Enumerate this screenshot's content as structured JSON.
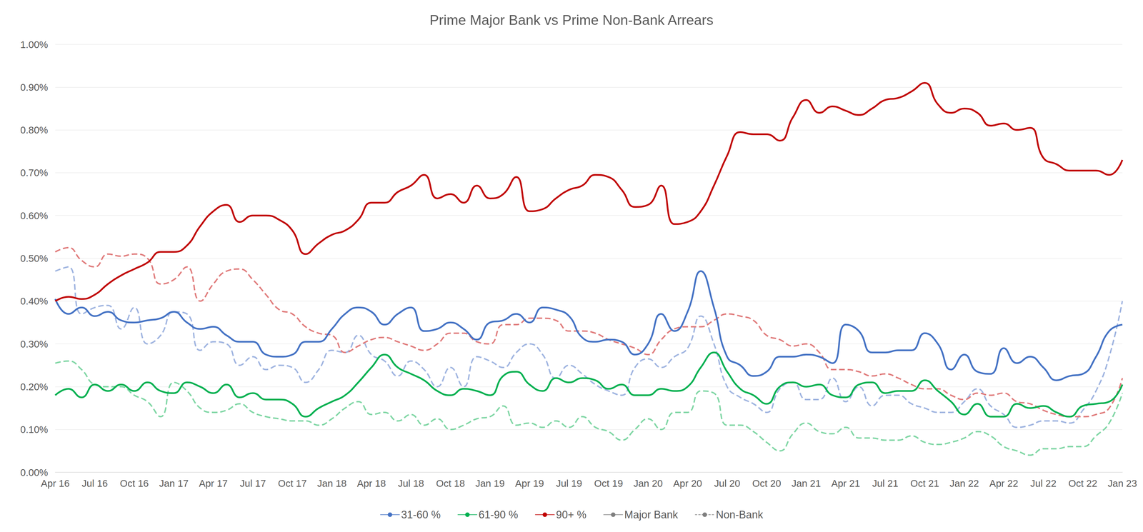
{
  "chart_data": {
    "type": "line",
    "title": "Prime Major Bank vs Prime Non-Bank Arrears",
    "categories": [
      "Apr 16",
      null,
      null,
      "Jul 16",
      null,
      null,
      "Oct 16",
      null,
      null,
      "Jan 17",
      null,
      null,
      "Apr 17",
      null,
      null,
      "Jul 17",
      null,
      null,
      "Oct 17",
      null,
      null,
      "Jan 18",
      null,
      null,
      "Apr 18",
      null,
      null,
      "Jul 18",
      null,
      null,
      "Oct 18",
      null,
      null,
      "Jan 19",
      null,
      null,
      "Apr 19",
      null,
      null,
      "Jul 19",
      null,
      null,
      "Oct 19",
      null,
      null,
      "Jan 20",
      null,
      null,
      "Apr 20",
      null,
      null,
      "Jul 20",
      null,
      null,
      "Oct 20",
      null,
      null,
      "Jan 21",
      null,
      null,
      "Apr 21",
      null,
      null,
      "Jul 21",
      null,
      null,
      "Oct 21",
      null,
      null,
      "Jan 22",
      null,
      null,
      "Apr 22",
      null,
      null,
      "Jul 22",
      null,
      null,
      "Oct 22",
      null,
      null,
      "Jan 23"
    ],
    "series": [
      {
        "name": "31-60 %",
        "lender": "Major Bank",
        "color": "#4472c4",
        "line_style": "solid",
        "values": [
          0.405,
          0.37,
          0.385,
          0.365,
          0.375,
          0.355,
          0.35,
          0.355,
          0.36,
          0.375,
          0.35,
          0.335,
          0.34,
          0.32,
          0.305,
          0.305,
          0.275,
          0.27,
          0.275,
          0.305,
          0.305,
          0.335,
          0.37,
          0.385,
          0.375,
          0.345,
          0.37,
          0.385,
          0.33,
          0.335,
          0.35,
          0.335,
          0.31,
          0.35,
          0.355,
          0.37,
          0.35,
          0.385,
          0.38,
          0.365,
          0.315,
          0.305,
          0.31,
          0.305,
          0.275,
          0.3,
          0.37,
          0.33,
          0.375,
          0.47,
          0.385,
          0.27,
          0.25,
          0.225,
          0.235,
          0.27,
          0.27,
          0.275,
          0.27,
          0.255,
          0.345,
          0.33,
          0.28,
          0.28,
          0.285,
          0.285,
          0.325,
          0.3,
          0.24,
          0.275,
          0.235,
          0.23,
          0.29,
          0.255,
          0.27,
          0.245,
          0.215,
          0.225,
          0.23,
          0.27,
          0.33,
          0.345
        ]
      },
      {
        "name": "61-90 %",
        "lender": "Major Bank",
        "color": "#00b050",
        "line_style": "solid",
        "values": [
          0.18,
          0.195,
          0.175,
          0.205,
          0.19,
          0.205,
          0.19,
          0.21,
          0.19,
          0.185,
          0.21,
          0.2,
          0.185,
          0.205,
          0.175,
          0.185,
          0.17,
          0.17,
          0.16,
          0.13,
          0.15,
          0.165,
          0.18,
          0.21,
          0.245,
          0.275,
          0.245,
          0.23,
          0.215,
          0.19,
          0.18,
          0.195,
          0.19,
          0.18,
          0.225,
          0.235,
          0.205,
          0.19,
          0.22,
          0.21,
          0.22,
          0.215,
          0.195,
          0.205,
          0.18,
          0.18,
          0.195,
          0.19,
          0.2,
          0.245,
          0.28,
          0.235,
          0.195,
          0.18,
          0.16,
          0.2,
          0.21,
          0.2,
          0.205,
          0.18,
          0.175,
          0.205,
          0.21,
          0.185,
          0.19,
          0.19,
          0.215,
          0.19,
          0.165,
          0.135,
          0.16,
          0.13,
          0.13,
          0.16,
          0.15,
          0.155,
          0.14,
          0.13,
          0.155,
          0.16,
          0.165,
          0.205
        ]
      },
      {
        "name": "90+ %",
        "lender": "Major Bank",
        "color": "#c00000",
        "line_style": "solid",
        "values": [
          0.4,
          0.41,
          0.405,
          0.415,
          0.44,
          0.46,
          0.475,
          0.49,
          0.515,
          0.515,
          0.53,
          0.575,
          0.61,
          0.625,
          0.585,
          0.6,
          0.6,
          0.59,
          0.565,
          0.51,
          0.535,
          0.555,
          0.565,
          0.59,
          0.63,
          0.63,
          0.655,
          0.67,
          0.695,
          0.64,
          0.65,
          0.63,
          0.67,
          0.64,
          0.65,
          0.69,
          0.61,
          0.615,
          0.64,
          0.66,
          0.67,
          0.695,
          0.69,
          0.66,
          0.62,
          0.625,
          0.67,
          0.58,
          0.585,
          0.61,
          0.67,
          0.74,
          0.795,
          0.79,
          0.79,
          0.775,
          0.83,
          0.87,
          0.84,
          0.855,
          0.845,
          0.835,
          0.85,
          0.87,
          0.875,
          0.89,
          0.91,
          0.86,
          0.84,
          0.85,
          0.84,
          0.81,
          0.815,
          0.8,
          0.805,
          0.735,
          0.72,
          0.705,
          0.705,
          0.705,
          0.695,
          0.73
        ]
      },
      {
        "name": "31-60 %",
        "lender": "Non-Bank",
        "color": "#9fb4e0",
        "line_style": "dashed",
        "values": [
          0.47,
          0.48,
          0.37,
          0.385,
          0.39,
          0.335,
          0.385,
          0.3,
          0.32,
          0.375,
          0.37,
          0.285,
          0.305,
          0.3,
          0.25,
          0.27,
          0.24,
          0.25,
          0.245,
          0.21,
          0.24,
          0.285,
          0.28,
          0.32,
          0.275,
          0.26,
          0.225,
          0.26,
          0.24,
          0.2,
          0.245,
          0.2,
          0.27,
          0.26,
          0.245,
          0.28,
          0.3,
          0.275,
          0.22,
          0.25,
          0.23,
          0.205,
          0.19,
          0.18,
          0.245,
          0.265,
          0.245,
          0.27,
          0.29,
          0.365,
          0.3,
          0.2,
          0.175,
          0.16,
          0.14,
          0.195,
          0.21,
          0.17,
          0.17,
          0.22,
          0.165,
          0.2,
          0.155,
          0.18,
          0.18,
          0.16,
          0.15,
          0.14,
          0.14,
          0.165,
          0.195,
          0.155,
          0.135,
          0.105,
          0.11,
          0.12,
          0.12,
          0.115,
          0.145,
          0.19,
          0.27,
          0.4
        ]
      },
      {
        "name": "61-90 %",
        "lender": "Non-Bank",
        "color": "#7fd6a4",
        "line_style": "dashed",
        "values": [
          0.255,
          0.26,
          0.24,
          0.205,
          0.2,
          0.2,
          0.18,
          0.165,
          0.13,
          0.21,
          0.19,
          0.15,
          0.14,
          0.145,
          0.16,
          0.14,
          0.13,
          0.125,
          0.12,
          0.12,
          0.11,
          0.125,
          0.15,
          0.165,
          0.135,
          0.14,
          0.12,
          0.135,
          0.11,
          0.125,
          0.1,
          0.11,
          0.125,
          0.13,
          0.155,
          0.11,
          0.115,
          0.105,
          0.12,
          0.105,
          0.13,
          0.105,
          0.095,
          0.075,
          0.1,
          0.125,
          0.1,
          0.14,
          0.14,
          0.19,
          0.185,
          0.11,
          0.11,
          0.095,
          0.07,
          0.05,
          0.09,
          0.115,
          0.095,
          0.09,
          0.105,
          0.08,
          0.08,
          0.075,
          0.075,
          0.085,
          0.07,
          0.065,
          0.07,
          0.08,
          0.095,
          0.085,
          0.06,
          0.05,
          0.04,
          0.055,
          0.055,
          0.06,
          0.06,
          0.085,
          0.115,
          0.185
        ]
      },
      {
        "name": "90+ %",
        "lender": "Non-Bank",
        "color": "#e07b7b",
        "line_style": "dashed",
        "values": [
          0.515,
          0.525,
          0.495,
          0.48,
          0.51,
          0.505,
          0.51,
          0.5,
          0.44,
          0.45,
          0.48,
          0.4,
          0.44,
          0.47,
          0.475,
          0.45,
          0.415,
          0.38,
          0.37,
          0.34,
          0.325,
          0.32,
          0.28,
          0.295,
          0.31,
          0.315,
          0.305,
          0.295,
          0.285,
          0.3,
          0.325,
          0.325,
          0.305,
          0.3,
          0.345,
          0.345,
          0.36,
          0.36,
          0.355,
          0.33,
          0.33,
          0.325,
          0.31,
          0.3,
          0.29,
          0.275,
          0.31,
          0.335,
          0.34,
          0.34,
          0.355,
          0.37,
          0.365,
          0.355,
          0.32,
          0.31,
          0.295,
          0.3,
          0.28,
          0.24,
          0.24,
          0.235,
          0.225,
          0.23,
          0.22,
          0.205,
          0.195,
          0.195,
          0.18,
          0.17,
          0.185,
          0.18,
          0.185,
          0.165,
          0.16,
          0.145,
          0.135,
          0.13,
          0.13,
          0.135,
          0.15,
          0.22
        ]
      }
    ],
    "ylim": [
      0,
      1.0
    ],
    "yticks": [
      {
        "value": 0,
        "label": "0.00%"
      },
      {
        "value": 0.1,
        "label": "0.10%"
      },
      {
        "value": 0.2,
        "label": "0.20%"
      },
      {
        "value": 0.3,
        "label": "0.30%"
      },
      {
        "value": 0.4,
        "label": "0.40%"
      },
      {
        "value": 0.5,
        "label": "0.50%"
      },
      {
        "value": 0.6,
        "label": "0.60%"
      },
      {
        "value": 0.7,
        "label": "0.70%"
      },
      {
        "value": 0.8,
        "label": "0.80%"
      },
      {
        "value": 0.9,
        "label": "0.90%"
      },
      {
        "value": 1.0,
        "label": "1.00%"
      }
    ],
    "grid": true,
    "legend": "bottom"
  }
}
